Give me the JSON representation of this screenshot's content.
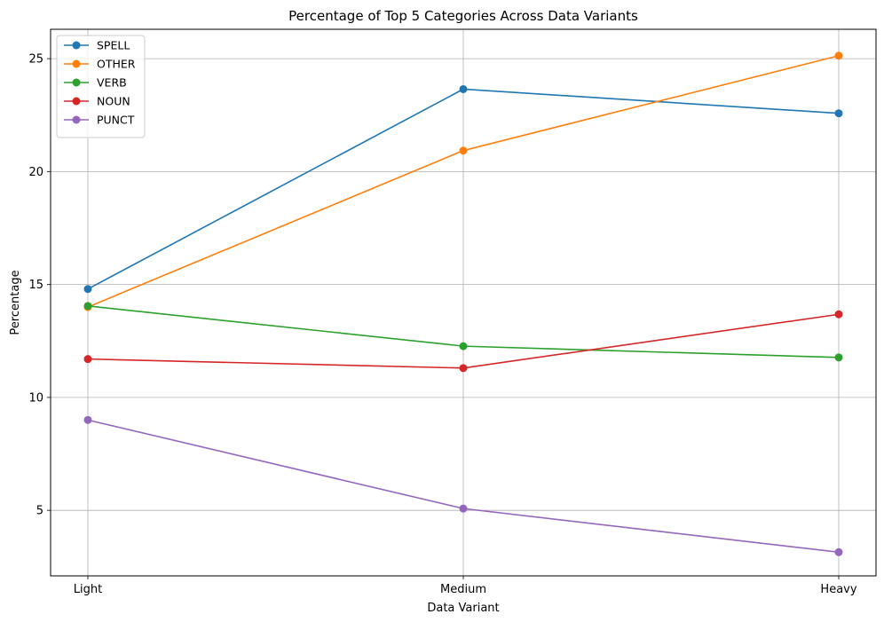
{
  "chart_data": {
    "type": "line",
    "title": "Percentage of Top 5 Categories Across Data Variants",
    "xlabel": "Data Variant",
    "ylabel": "Percentage",
    "categories": [
      "Light",
      "Medium",
      "Heavy"
    ],
    "ylim": [
      2.1,
      26.3
    ],
    "yticks": [
      5,
      10,
      15,
      20,
      25
    ],
    "grid": true,
    "legend_position": "top-left",
    "series": [
      {
        "name": "SPELL",
        "color": "#1f77b4",
        "values": [
          14.8,
          23.65,
          22.58
        ]
      },
      {
        "name": "OTHER",
        "color": "#ff7f0e",
        "values": [
          14.0,
          20.93,
          25.13
        ]
      },
      {
        "name": "VERB",
        "color": "#2ca02c",
        "values": [
          14.05,
          12.27,
          11.77
        ]
      },
      {
        "name": "NOUN",
        "color": "#d62728",
        "values": [
          11.7,
          11.3,
          13.68
        ]
      },
      {
        "name": "PUNCT",
        "color": "#9467bd",
        "values": [
          9.0,
          5.08,
          3.15
        ]
      }
    ]
  }
}
